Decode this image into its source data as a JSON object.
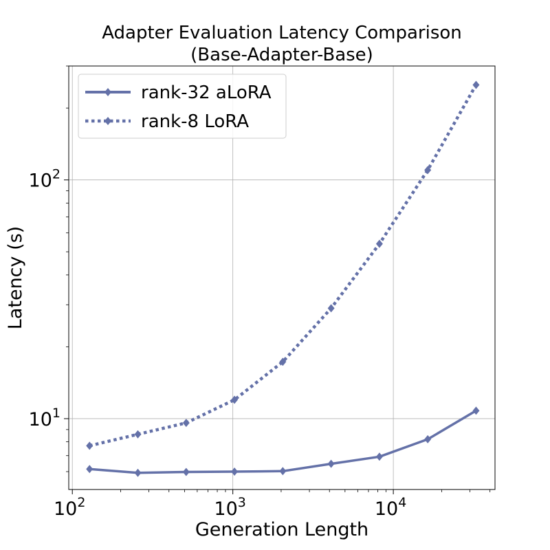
{
  "chart_data": {
    "type": "line",
    "title": "Adapter Evaluation Latency Comparison",
    "subtitle": "(Base-Adapter-Base)",
    "xlabel": "Generation Length",
    "ylabel": "Latency (s)",
    "xscale": "log",
    "yscale": "log",
    "xlim": [
      95,
      43000
    ],
    "ylim": [
      5.05,
      300
    ],
    "grid": true,
    "legend_position": "top-left",
    "x_ticks": [
      {
        "value": 100,
        "base": "10",
        "exp": "2"
      },
      {
        "value": 1000,
        "base": "10",
        "exp": "3"
      },
      {
        "value": 10000,
        "base": "10",
        "exp": "4"
      }
    ],
    "y_ticks": [
      {
        "value": 10,
        "base": "10",
        "exp": "1"
      },
      {
        "value": 100,
        "base": "10",
        "exp": "2"
      }
    ],
    "x": [
      128,
      256,
      512,
      1024,
      2048,
      4096,
      8192,
      16384,
      32768
    ],
    "series": [
      {
        "name": "rank-32 aLoRA",
        "style": "solid",
        "color": "#6471a8",
        "marker": "diamond",
        "values": [
          6.15,
          5.93,
          5.98,
          6.0,
          6.03,
          6.47,
          6.93,
          8.2,
          10.8
        ]
      },
      {
        "name": "rank-8 LoRA",
        "style": "dotted",
        "color": "#6471a8",
        "marker": "diamond",
        "values": [
          7.7,
          8.6,
          9.6,
          12.0,
          17.3,
          29.0,
          54.0,
          110,
          250
        ]
      }
    ]
  }
}
